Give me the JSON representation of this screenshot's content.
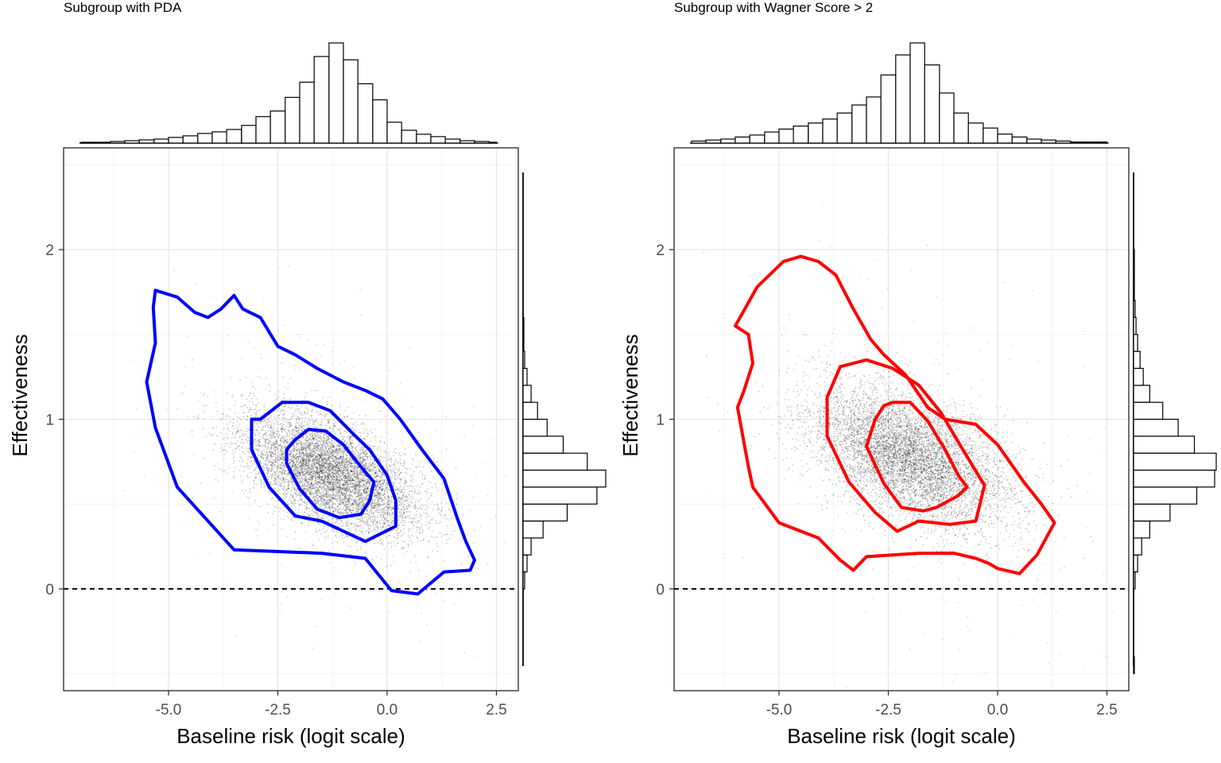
{
  "chart_data": [
    {
      "type": "scatter",
      "title": "Subgroup with PDA",
      "xlabel": "Baseline risk (logit scale)",
      "ylabel": "Effectiveness",
      "xlim": [
        -7.4,
        3.0
      ],
      "ylim": [
        -0.6,
        2.6
      ],
      "x_ticks": [
        -5.0,
        -2.5,
        0.0,
        2.5
      ],
      "x_tick_labels": [
        "-5.0",
        "-2.5",
        "0.0",
        "2.5"
      ],
      "y_ticks": [
        0,
        1,
        2
      ],
      "y_tick_labels": [
        "0",
        "1",
        "2"
      ],
      "grid": true,
      "reference_line": {
        "y": 0,
        "style": "dashed"
      },
      "contour_color": "#0000ff",
      "point_cloud": {
        "center_x": -1.3,
        "center_y": 0.68,
        "sd_x": 1.0,
        "sd_y": 0.17,
        "correlation": -0.55,
        "sampled_points": true
      },
      "contours": [
        [
          [
            -5.3,
            1.76
          ],
          [
            -4.8,
            1.72
          ],
          [
            -4.4,
            1.63
          ],
          [
            -4.1,
            1.6
          ],
          [
            -3.8,
            1.65
          ],
          [
            -3.5,
            1.73
          ],
          [
            -3.3,
            1.65
          ],
          [
            -2.9,
            1.6
          ],
          [
            -2.5,
            1.43
          ],
          [
            -2.1,
            1.38
          ],
          [
            -1.6,
            1.3
          ],
          [
            -1.0,
            1.22
          ],
          [
            -0.5,
            1.17
          ],
          [
            -0.1,
            1.12
          ],
          [
            0.3,
            1.0
          ],
          [
            0.8,
            0.82
          ],
          [
            1.3,
            0.65
          ],
          [
            1.6,
            0.42
          ],
          [
            1.8,
            0.28
          ],
          [
            2.0,
            0.17
          ],
          [
            1.9,
            0.11
          ],
          [
            1.3,
            0.1
          ],
          [
            0.7,
            -0.03
          ],
          [
            0.1,
            -0.01
          ],
          [
            -0.5,
            0.18
          ],
          [
            -1.5,
            0.21
          ],
          [
            -3.5,
            0.23
          ],
          [
            -4.8,
            0.6
          ],
          [
            -5.3,
            0.95
          ],
          [
            -5.5,
            1.22
          ],
          [
            -5.3,
            1.45
          ],
          [
            -5.35,
            1.66
          ],
          [
            -5.3,
            1.76
          ]
        ],
        [
          [
            -2.9,
            1.0
          ],
          [
            -2.4,
            1.1
          ],
          [
            -1.8,
            1.1
          ],
          [
            -1.3,
            1.05
          ],
          [
            -0.8,
            0.92
          ],
          [
            -0.4,
            0.82
          ],
          [
            0.0,
            0.67
          ],
          [
            0.2,
            0.52
          ],
          [
            0.2,
            0.37
          ],
          [
            -0.5,
            0.28
          ],
          [
            -1.5,
            0.4
          ],
          [
            -2.1,
            0.43
          ],
          [
            -2.7,
            0.6
          ],
          [
            -3.1,
            0.82
          ],
          [
            -3.1,
            1.0
          ],
          [
            -2.9,
            1.0
          ]
        ],
        [
          [
            -1.8,
            0.94
          ],
          [
            -1.4,
            0.93
          ],
          [
            -1.0,
            0.85
          ],
          [
            -0.6,
            0.72
          ],
          [
            -0.3,
            0.63
          ],
          [
            -0.4,
            0.52
          ],
          [
            -0.6,
            0.44
          ],
          [
            -1.1,
            0.42
          ],
          [
            -1.6,
            0.47
          ],
          [
            -2.0,
            0.59
          ],
          [
            -2.3,
            0.74
          ],
          [
            -2.3,
            0.82
          ],
          [
            -2.1,
            0.88
          ],
          [
            -1.8,
            0.94
          ]
        ]
      ],
      "top_histogram": {
        "bins": [
          -7.0,
          -6.67,
          -6.33,
          -6.0,
          -5.67,
          -5.33,
          -5.0,
          -4.67,
          -4.33,
          -4.0,
          -3.67,
          -3.33,
          -3.0,
          -2.67,
          -2.33,
          -2.0,
          -1.67,
          -1.33,
          -1.0,
          -0.67,
          -0.33,
          0.0,
          0.33,
          0.67,
          1.0,
          1.33,
          1.67,
          2.0,
          2.33,
          2.5
        ],
        "counts": [
          1,
          1,
          2,
          3,
          4,
          5,
          7,
          9,
          12,
          14,
          17,
          22,
          33,
          40,
          57,
          76,
          108,
          125,
          104,
          74,
          54,
          26,
          16,
          11,
          8,
          5,
          3,
          2,
          1
        ]
      },
      "right_histogram": {
        "bins": [
          -0.5,
          -0.4,
          -0.3,
          -0.2,
          -0.1,
          0.0,
          0.1,
          0.2,
          0.3,
          0.4,
          0.5,
          0.6,
          0.7,
          0.8,
          0.9,
          1.0,
          1.1,
          1.2,
          1.3,
          1.4,
          1.5,
          1.6,
          1.7,
          1.8,
          1.9,
          2.0,
          2.1,
          2.2,
          2.3,
          2.4,
          2.5
        ],
        "counts": [
          0,
          0,
          0,
          0,
          0,
          2,
          5,
          10,
          25,
          55,
          92,
          103,
          80,
          50,
          30,
          18,
          10,
          5,
          2,
          1,
          1,
          0,
          0,
          0,
          0,
          0,
          0,
          0,
          0,
          0
        ]
      }
    },
    {
      "type": "scatter",
      "title": "Subgroup with Wagner Score > 2",
      "xlabel": "Baseline risk (logit scale)",
      "ylabel": "Effectiveness",
      "xlim": [
        -7.4,
        3.0
      ],
      "ylim": [
        -0.6,
        2.6
      ],
      "x_ticks": [
        -5.0,
        -2.5,
        0.0,
        2.5
      ],
      "x_tick_labels": [
        "-5.0",
        "-2.5",
        "0.0",
        "2.5"
      ],
      "y_ticks": [
        0,
        1,
        2
      ],
      "y_tick_labels": [
        "0",
        "1",
        "2"
      ],
      "grid": true,
      "reference_line": {
        "y": 0,
        "style": "dashed"
      },
      "contour_color": "#ff0000",
      "point_cloud": {
        "center_x": -2.0,
        "center_y": 0.78,
        "sd_x": 1.1,
        "sd_y": 0.2,
        "correlation": -0.5,
        "sampled_points": true
      },
      "contours": [
        [
          [
            -4.5,
            1.96
          ],
          [
            -4.1,
            1.93
          ],
          [
            -3.7,
            1.85
          ],
          [
            -3.3,
            1.65
          ],
          [
            -2.9,
            1.47
          ],
          [
            -2.6,
            1.38
          ],
          [
            -2.1,
            1.26
          ],
          [
            -1.6,
            1.07
          ],
          [
            -1.2,
            1.0
          ],
          [
            -0.5,
            0.97
          ],
          [
            0.0,
            0.85
          ],
          [
            0.6,
            0.63
          ],
          [
            1.0,
            0.5
          ],
          [
            1.3,
            0.39
          ],
          [
            0.9,
            0.2
          ],
          [
            0.5,
            0.09
          ],
          [
            0.0,
            0.12
          ],
          [
            -0.2,
            0.15
          ],
          [
            -0.5,
            0.18
          ],
          [
            -1.0,
            0.21
          ],
          [
            -1.8,
            0.21
          ],
          [
            -3.0,
            0.19
          ],
          [
            -3.3,
            0.11
          ],
          [
            -3.6,
            0.17
          ],
          [
            -4.1,
            0.3
          ],
          [
            -5.0,
            0.39
          ],
          [
            -5.6,
            0.6
          ],
          [
            -5.7,
            0.72
          ],
          [
            -5.95,
            1.07
          ],
          [
            -5.8,
            1.17
          ],
          [
            -5.6,
            1.33
          ],
          [
            -5.7,
            1.5
          ],
          [
            -6.0,
            1.55
          ],
          [
            -5.5,
            1.78
          ],
          [
            -4.9,
            1.93
          ],
          [
            -4.5,
            1.96
          ]
        ],
        [
          [
            -3.6,
            1.31
          ],
          [
            -3.0,
            1.35
          ],
          [
            -2.4,
            1.3
          ],
          [
            -1.8,
            1.2
          ],
          [
            -1.3,
            1.04
          ],
          [
            -0.7,
            0.78
          ],
          [
            -0.3,
            0.61
          ],
          [
            -0.5,
            0.4
          ],
          [
            -1.1,
            0.38
          ],
          [
            -1.8,
            0.4
          ],
          [
            -2.3,
            0.34
          ],
          [
            -2.8,
            0.45
          ],
          [
            -3.4,
            0.63
          ],
          [
            -3.9,
            0.9
          ],
          [
            -3.9,
            1.13
          ],
          [
            -3.6,
            1.31
          ]
        ],
        [
          [
            -2.4,
            1.1
          ],
          [
            -2.0,
            1.1
          ],
          [
            -1.6,
            0.99
          ],
          [
            -1.2,
            0.82
          ],
          [
            -0.9,
            0.67
          ],
          [
            -0.7,
            0.6
          ],
          [
            -0.9,
            0.55
          ],
          [
            -1.4,
            0.48
          ],
          [
            -1.7,
            0.46
          ],
          [
            -2.2,
            0.48
          ],
          [
            -2.6,
            0.62
          ],
          [
            -3.0,
            0.84
          ],
          [
            -2.8,
            1.0
          ],
          [
            -2.6,
            1.08
          ],
          [
            -2.4,
            1.1
          ]
        ]
      ],
      "top_histogram": {
        "bins": [
          -7.0,
          -6.67,
          -6.33,
          -6.0,
          -5.67,
          -5.33,
          -5.0,
          -4.67,
          -4.33,
          -4.0,
          -3.67,
          -3.33,
          -3.0,
          -2.67,
          -2.33,
          -2.0,
          -1.67,
          -1.33,
          -1.0,
          -0.67,
          -0.33,
          0.0,
          0.33,
          0.67,
          1.0,
          1.33,
          1.67,
          2.0,
          2.33,
          2.5
        ],
        "counts": [
          2,
          3,
          4,
          6,
          8,
          11,
          14,
          17,
          20,
          24,
          30,
          38,
          46,
          68,
          88,
          100,
          78,
          50,
          30,
          20,
          15,
          9,
          6,
          4,
          3,
          2,
          1,
          1,
          1
        ]
      },
      "right_histogram": {
        "bins": [
          -0.5,
          -0.4,
          -0.3,
          -0.2,
          -0.1,
          0.0,
          0.1,
          0.2,
          0.3,
          0.4,
          0.5,
          0.6,
          0.7,
          0.8,
          0.9,
          1.0,
          1.1,
          1.2,
          1.3,
          1.4,
          1.5,
          1.6,
          1.7,
          1.8,
          1.9,
          2.0,
          2.1,
          2.2,
          2.3,
          2.4,
          2.5
        ],
        "counts": [
          1,
          0,
          0,
          0,
          0,
          2,
          5,
          10,
          20,
          45,
          78,
          100,
          102,
          75,
          55,
          36,
          20,
          12,
          8,
          5,
          3,
          2,
          1,
          1,
          1,
          0,
          0,
          0,
          0,
          0
        ]
      }
    }
  ]
}
